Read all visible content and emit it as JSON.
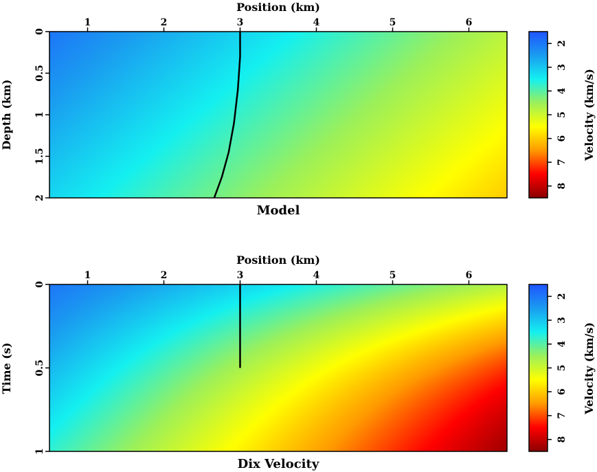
{
  "chart_data": [
    {
      "type": "heatmap",
      "title": "Model",
      "xlabel": "Position (km)",
      "ylabel": "Depth (km)",
      "xlim": [
        0.5,
        6.5
      ],
      "ylim": [
        0,
        2
      ],
      "x_ticks": [
        "1",
        "2",
        "3",
        "4",
        "5",
        "6"
      ],
      "y_ticks": [
        "0",
        "0.5",
        "1",
        "1.5",
        "2"
      ],
      "colorbar": {
        "label": "Velocity (km/s)",
        "range": [
          1.5,
          8.5
        ],
        "ticks": [
          "2",
          "3",
          "4",
          "5",
          "6",
          "7",
          "8"
        ],
        "colormap": [
          "#1f54ff",
          "#1a9cf0",
          "#14f0f0",
          "#9cf05a",
          "#ffff00",
          "#ff9a00",
          "#ff0000",
          "#8a0000"
        ]
      },
      "velocity_corners": {
        "top_left": 2.0,
        "top_right": 4.8,
        "bottom_left": 3.2,
        "bottom_right": 6.0
      },
      "ray_path": {
        "x": [
          3.0,
          3.0,
          2.97,
          2.92,
          2.85,
          2.76,
          2.66
        ],
        "y": [
          0.0,
          0.3,
          0.7,
          1.1,
          1.45,
          1.75,
          2.0
        ]
      }
    },
    {
      "type": "heatmap",
      "title": "Dix Velocity",
      "xlabel": "Position (km)",
      "ylabel": "Time (s)",
      "xlim": [
        0.5,
        6.5
      ],
      "ylim": [
        0,
        1
      ],
      "x_ticks": [
        "1",
        "2",
        "3",
        "4",
        "5",
        "6"
      ],
      "y_ticks": [
        "0",
        "0.5",
        "1"
      ],
      "colorbar": {
        "label": "Velocity (km/s)",
        "range": [
          1.5,
          8.5
        ],
        "ticks": [
          "2",
          "3",
          "4",
          "5",
          "6",
          "7",
          "8"
        ],
        "colormap": [
          "#1f54ff",
          "#1a9cf0",
          "#14f0f0",
          "#9cf05a",
          "#ffff00",
          "#ff9a00",
          "#ff0000",
          "#8a0000"
        ]
      },
      "velocity_corners": {
        "top_left": 2.0,
        "top_right": 4.8,
        "bottom_left": 3.7,
        "bottom_right": 8.3
      },
      "ray_path": {
        "x": [
          3.0,
          3.0
        ],
        "y": [
          0.0,
          0.5
        ]
      }
    }
  ]
}
